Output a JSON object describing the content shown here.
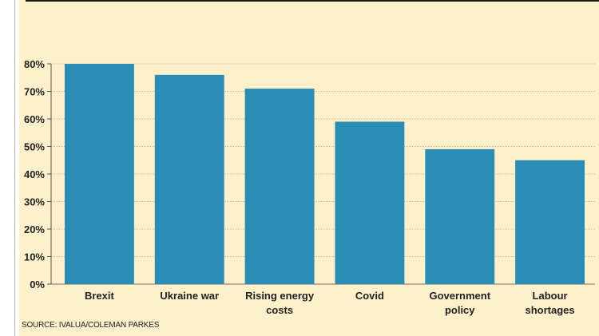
{
  "source": "SOURCE: IVALUA/COLEMAN PARKES",
  "colors": {
    "bar": "#2a8db5",
    "background": "#fdf1cc",
    "grid": "#8f8a7a"
  },
  "chart_data": {
    "type": "bar",
    "categories": [
      [
        "Brexit"
      ],
      [
        "Ukraine war"
      ],
      [
        "Rising energy",
        "costs"
      ],
      [
        "Covid"
      ],
      [
        "Government",
        "policy"
      ],
      [
        "Labour",
        "shortages"
      ]
    ],
    "values": [
      80,
      76,
      71,
      59,
      49,
      45
    ],
    "yticks": [
      "0%",
      "10%",
      "20%",
      "30%",
      "40%",
      "50%",
      "60%",
      "70%",
      "80%"
    ],
    "ylim": [
      0,
      80
    ],
    "grid": true
  }
}
